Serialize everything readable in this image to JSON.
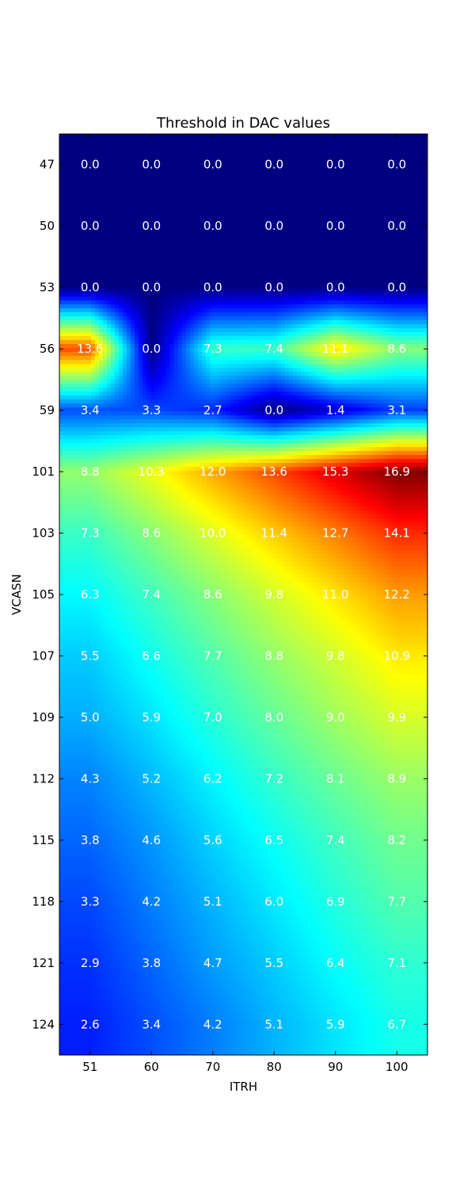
{
  "chart_data": {
    "type": "heatmap",
    "title": "Threshold in DAC values",
    "xlabel": "ITRH",
    "ylabel": "VCASN",
    "x_categories": [
      "51",
      "60",
      "70",
      "80",
      "90",
      "100"
    ],
    "y_categories": [
      "47",
      "50",
      "53",
      "56",
      "59",
      "101",
      "103",
      "105",
      "107",
      "109",
      "112",
      "115",
      "118",
      "121",
      "124"
    ],
    "values": [
      [
        0.0,
        0.0,
        0.0,
        0.0,
        0.0,
        0.0
      ],
      [
        0.0,
        0.0,
        0.0,
        0.0,
        0.0,
        0.0
      ],
      [
        0.0,
        0.0,
        0.0,
        0.0,
        0.0,
        0.0
      ],
      [
        13.6,
        0.0,
        7.3,
        7.4,
        11.1,
        8.6
      ],
      [
        3.4,
        3.3,
        2.7,
        0.0,
        1.4,
        3.1
      ],
      [
        8.8,
        10.3,
        12.0,
        13.6,
        15.3,
        16.9
      ],
      [
        7.3,
        8.6,
        10.0,
        11.4,
        12.7,
        14.1
      ],
      [
        6.3,
        7.4,
        8.6,
        9.8,
        11.0,
        12.2
      ],
      [
        5.5,
        6.6,
        7.7,
        8.8,
        9.8,
        10.9
      ],
      [
        5.0,
        5.9,
        7.0,
        8.0,
        9.0,
        9.9
      ],
      [
        4.3,
        5.2,
        6.2,
        7.2,
        8.1,
        8.9
      ],
      [
        3.8,
        4.6,
        5.6,
        6.5,
        7.4,
        8.2
      ],
      [
        3.3,
        4.2,
        5.1,
        6.0,
        6.9,
        7.7
      ],
      [
        2.9,
        3.8,
        4.7,
        5.5,
        6.4,
        7.1
      ],
      [
        2.6,
        3.4,
        4.2,
        5.1,
        5.9,
        6.7
      ]
    ],
    "colormap": "jet",
    "vmin": 0.0,
    "vmax": 16.9,
    "grid": false,
    "legend": "none"
  }
}
